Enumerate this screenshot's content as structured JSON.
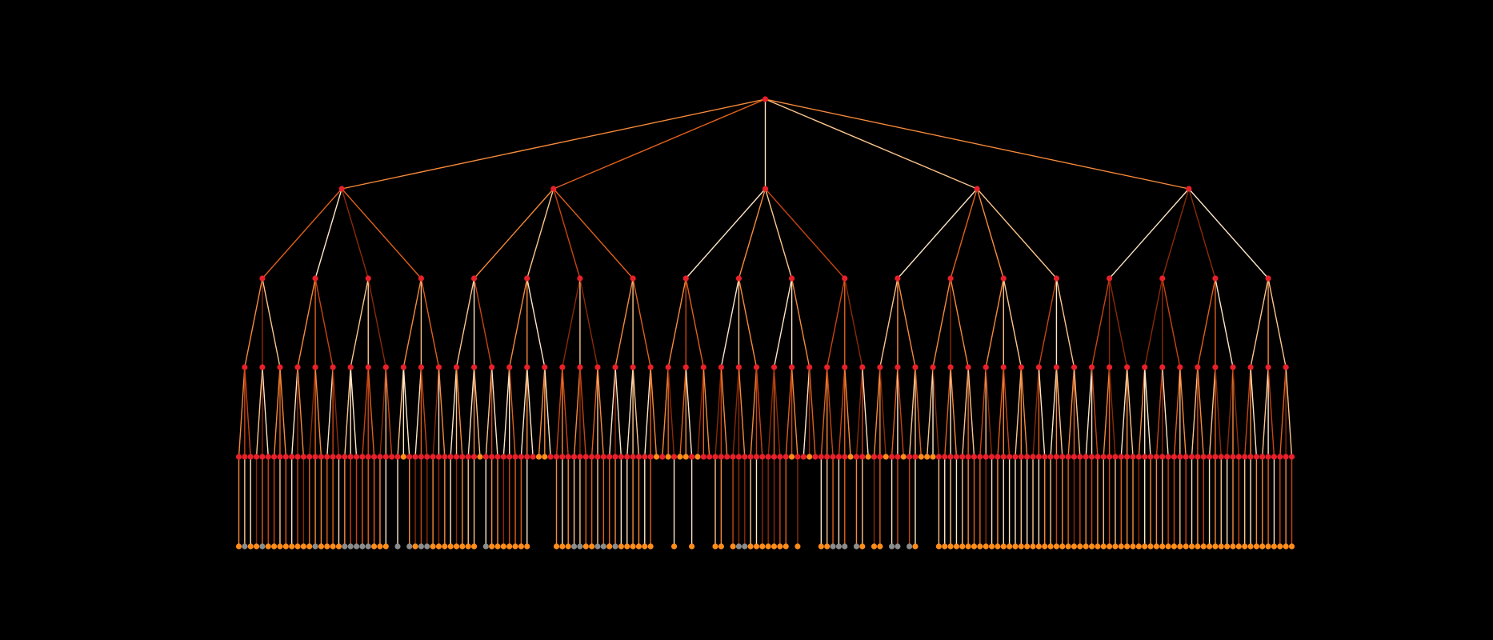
{
  "diagram": {
    "type": "tree",
    "depth": 6,
    "branching": [
      5,
      4,
      3,
      3,
      1
    ],
    "background": "#000000",
    "node_colors": {
      "internal": "#e8202a",
      "leaf_orange": "#ff8c1a",
      "leaf_gray": "#8c8c8c"
    },
    "edge_colors": [
      "#ffe6c7",
      "#fcc48c",
      "#f78a3a",
      "#e0601a",
      "#c84412",
      "#8a2a06"
    ],
    "level5_leaf_orange_columns": [
      28,
      41,
      51,
      52,
      71,
      73,
      75,
      76,
      78,
      94,
      97,
      104,
      107,
      110,
      113,
      116,
      117,
      118
    ],
    "level6_absent_columns": [
      26,
      28,
      41,
      50,
      51,
      52,
      53,
      71,
      72,
      73,
      75,
      76,
      78,
      79,
      80,
      83,
      94,
      96,
      97,
      98,
      104,
      107,
      110,
      113,
      116,
      117,
      118
    ],
    "level6_gray_columns": [
      1,
      4,
      13,
      18,
      19,
      20,
      21,
      22,
      27,
      29,
      31,
      32,
      42,
      57,
      58,
      61,
      62,
      64,
      85,
      86,
      101,
      102,
      103,
      105,
      111,
      112,
      114
    ]
  }
}
